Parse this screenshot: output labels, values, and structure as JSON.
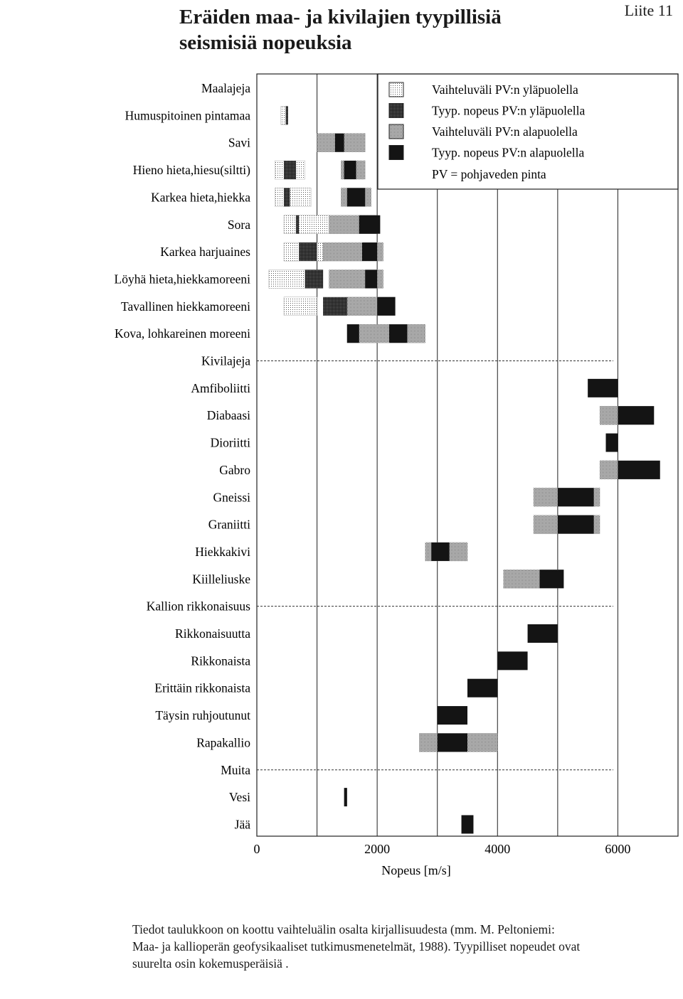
{
  "header": {
    "title_line1": "Eräiden maa- ja kivilajien tyypillisiä",
    "title_line2": "seismisiä nopeuksia",
    "appendix_label": "Liite 11"
  },
  "legend": {
    "items": [
      {
        "pattern": "light",
        "label": "Vaihteluväli PV:n yläpuolella"
      },
      {
        "pattern": "dark",
        "label": "Tyyp. nopeus PV:n yläpuolella"
      },
      {
        "pattern": "medium",
        "label": "Vaihteluväli PV:n alapuolella"
      },
      {
        "pattern": "black",
        "label": "Tyyp. nopeus PV:n alapuolella"
      }
    ],
    "note": "PV = pohjaveden pinta"
  },
  "chart_data": {
    "type": "bar",
    "orientation": "horizontal-range",
    "xlabel": "Nopeus  [m/s]",
    "xlim": [
      0,
      7000
    ],
    "xticks": [
      0,
      2000,
      4000,
      6000
    ],
    "grid": "vertical lines every 1000 m/s",
    "legend_placement": "top-right",
    "colors": {
      "light": "#d8d8d8",
      "dark": "#3a3a3a",
      "medium": "#a8a8a8",
      "black": "#1a1a1a",
      "grid": "#333333",
      "frame": "#222222"
    },
    "rows": [
      {
        "label": "Maalajeja",
        "type": "group"
      },
      {
        "label": "Humuspitoinen pintamaa",
        "bars": [
          [
            400,
            500,
            "light"
          ],
          [
            480,
            520,
            "dark"
          ]
        ]
      },
      {
        "label": "Savi",
        "bars": [
          [
            1000,
            1800,
            "medium"
          ],
          [
            1300,
            1450,
            "black"
          ]
        ]
      },
      {
        "label": "Hieno hieta,hiesu(siltti)",
        "bars": [
          [
            300,
            800,
            "light"
          ],
          [
            450,
            650,
            "dark"
          ],
          [
            1400,
            1800,
            "medium"
          ],
          [
            1450,
            1650,
            "black"
          ]
        ]
      },
      {
        "label": "Karkea hieta,hiekka",
        "bars": [
          [
            300,
            900,
            "light"
          ],
          [
            450,
            550,
            "dark"
          ],
          [
            1400,
            1900,
            "medium"
          ],
          [
            1500,
            1800,
            "black"
          ]
        ]
      },
      {
        "label": "Sora",
        "bars": [
          [
            450,
            1200,
            "light"
          ],
          [
            650,
            700,
            "dark"
          ],
          [
            1200,
            2000,
            "medium"
          ],
          [
            1700,
            2050,
            "black"
          ]
        ]
      },
      {
        "label": "Karkea harjuaines",
        "bars": [
          [
            450,
            1100,
            "light"
          ],
          [
            700,
            1000,
            "dark"
          ],
          [
            1100,
            2100,
            "medium"
          ],
          [
            1750,
            2000,
            "black"
          ]
        ]
      },
      {
        "label": "Löyhä hieta,hiekkamoreeni",
        "bars": [
          [
            200,
            1100,
            "light"
          ],
          [
            800,
            1100,
            "dark"
          ],
          [
            1200,
            2100,
            "medium"
          ],
          [
            1800,
            2000,
            "black"
          ]
        ]
      },
      {
        "label": "Tavallinen hiekkamoreeni",
        "bars": [
          [
            450,
            1000,
            "light"
          ],
          [
            1100,
            1500,
            "dark"
          ],
          [
            1500,
            2300,
            "medium"
          ],
          [
            2000,
            2300,
            "black"
          ]
        ]
      },
      {
        "label": "Kova, lohkareinen moreeni",
        "bars": [
          [
            1500,
            2800,
            "medium"
          ],
          [
            1500,
            1700,
            "black"
          ],
          [
            2200,
            2500,
            "black"
          ]
        ]
      },
      {
        "label": "Kivilajeja",
        "type": "group"
      },
      {
        "label": "Amfiboliitti",
        "bars": [
          [
            5500,
            6000,
            "black"
          ]
        ]
      },
      {
        "label": "Diabaasi",
        "bars": [
          [
            5700,
            6600,
            "medium"
          ],
          [
            6000,
            6600,
            "black"
          ]
        ]
      },
      {
        "label": "Dioriitti",
        "bars": [
          [
            5800,
            6000,
            "black"
          ]
        ]
      },
      {
        "label": "Gabro",
        "bars": [
          [
            5700,
            6700,
            "medium"
          ],
          [
            6000,
            6700,
            "black"
          ]
        ]
      },
      {
        "label": "Gneissi",
        "bars": [
          [
            4600,
            5700,
            "medium"
          ],
          [
            5000,
            5600,
            "black"
          ]
        ]
      },
      {
        "label": "Graniitti",
        "bars": [
          [
            4600,
            5700,
            "medium"
          ],
          [
            5000,
            5600,
            "black"
          ]
        ]
      },
      {
        "label": "Hiekkakivi",
        "bars": [
          [
            2800,
            3500,
            "medium"
          ],
          [
            2900,
            3200,
            "black"
          ]
        ]
      },
      {
        "label": "Kiilleliuske",
        "bars": [
          [
            4100,
            5100,
            "medium"
          ],
          [
            4700,
            5100,
            "black"
          ]
        ]
      },
      {
        "label": "Kallion rikkonaisuus",
        "type": "group"
      },
      {
        "label": "Rikkonaisuutta",
        "bars": [
          [
            4500,
            5000,
            "black"
          ]
        ]
      },
      {
        "label": "Rikkonaista",
        "bars": [
          [
            4000,
            4500,
            "black"
          ]
        ]
      },
      {
        "label": "Erittäin rikkonaista",
        "bars": [
          [
            3500,
            4000,
            "black"
          ]
        ]
      },
      {
        "label": "Täysin ruhjoutunut",
        "bars": [
          [
            3000,
            3500,
            "black"
          ]
        ]
      },
      {
        "label": "Rapakallio",
        "bars": [
          [
            2700,
            4000,
            "medium"
          ],
          [
            3000,
            3500,
            "black"
          ]
        ]
      },
      {
        "label": "Muita",
        "type": "group"
      },
      {
        "label": "Vesi",
        "bars": [
          [
            1450,
            1500,
            "black"
          ]
        ]
      },
      {
        "label": "Jää",
        "bars": [
          [
            3400,
            3600,
            "black"
          ]
        ]
      }
    ]
  },
  "footnote": {
    "line1": "Tiedot taulukkoon on koottu vaihteluälin osalta kirjallisuudesta (mm. M. Peltoniemi:",
    "line2": "Maa- ja kallioperän geofysikaaliset tutkimusmenetelmät, 1988). Tyypilliset nopeudet ovat",
    "line3": "suurelta osin kokemusperäisiä ."
  }
}
